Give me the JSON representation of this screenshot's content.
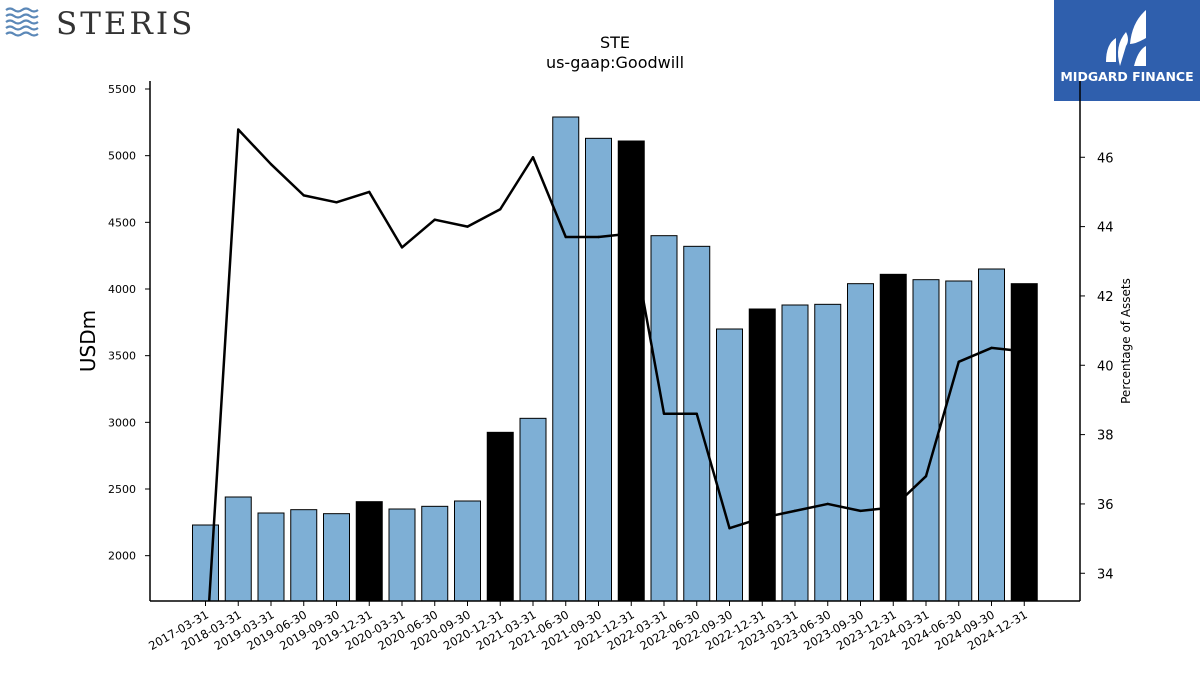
{
  "brand": {
    "company_name": "STERIS",
    "publisher_name": "MIDGARD FINANCE"
  },
  "colors": {
    "bar_default": "#7eafd5",
    "bar_highlight": "#000000",
    "line": "#000000",
    "publisher_bg": "#2f5fad",
    "company_logo": "#5b88b8"
  },
  "chart_data": {
    "type": "bar",
    "title": "STE",
    "subtitle": "us-gaap:Goodwill",
    "ylabel": "USDm",
    "y2label": "Percentage of Assets",
    "ylim": [
      1660,
      5560
    ],
    "y2lim": [
      33.2,
      48.2
    ],
    "yticks": [
      2000,
      2500,
      3000,
      3500,
      4000,
      4500,
      5000,
      5500
    ],
    "y2ticks": [
      34,
      36,
      38,
      40,
      42,
      44,
      46
    ],
    "categories": [
      "2017-03-31",
      "2018-03-31",
      "2019-03-31",
      "2019-06-30",
      "2019-09-30",
      "2019-12-31",
      "2020-03-31",
      "2020-06-30",
      "2020-09-30",
      "2020-12-31",
      "2021-03-31",
      "2021-06-30",
      "2021-09-30",
      "2021-12-31",
      "2022-03-31",
      "2022-06-30",
      "2022-09-30",
      "2022-12-31",
      "2023-03-31",
      "2023-06-30",
      "2023-09-30",
      "2023-12-31",
      "2024-03-31",
      "2024-06-30",
      "2024-09-30",
      "2024-12-31"
    ],
    "series": [
      {
        "type": "bar",
        "axis": "left",
        "values": [
          2230,
          2440,
          2320,
          2345,
          2315,
          2405,
          2350,
          2370,
          2410,
          2925,
          3030,
          5290,
          5130,
          5110,
          4400,
          4320,
          3700,
          3850,
          3880,
          3885,
          4040,
          4110,
          4070,
          4060,
          4150,
          4040
        ],
        "highlight": [
          false,
          false,
          false,
          false,
          false,
          true,
          false,
          false,
          false,
          true,
          false,
          false,
          false,
          true,
          false,
          false,
          false,
          true,
          false,
          false,
          false,
          true,
          false,
          false,
          false,
          true
        ]
      },
      {
        "type": "line",
        "axis": "right",
        "values": [
          null,
          46.8,
          45.8,
          44.9,
          44.7,
          45.0,
          43.4,
          44.2,
          44.0,
          44.5,
          46.0,
          43.7,
          43.7,
          43.8,
          38.6,
          38.6,
          35.3,
          35.6,
          35.8,
          36.0,
          35.8,
          35.9,
          36.8,
          40.1,
          40.5,
          40.4
        ]
      }
    ]
  }
}
